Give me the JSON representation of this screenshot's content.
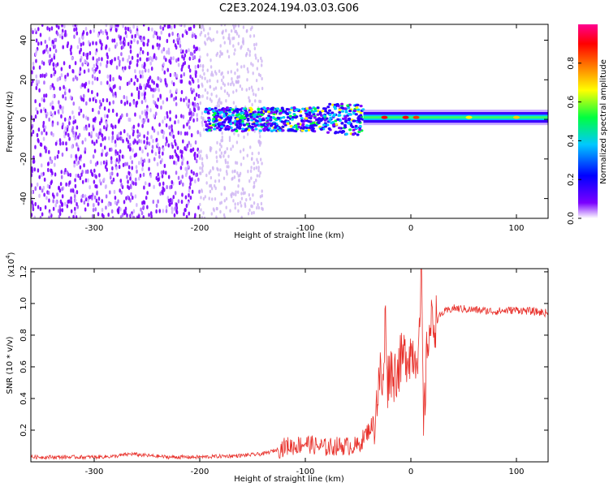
{
  "title": "C2E3.2024.194.03.03.G06",
  "chart_data": [
    {
      "type": "heatmap",
      "xlabel": "Height of straight line (km)",
      "ylabel": "Frequency (Hz)",
      "xlim": [
        -360,
        130
      ],
      "ylim": [
        -50,
        48
      ],
      "xticks": [
        -300,
        -200,
        -100,
        0,
        100
      ],
      "xtick_labels": [
        "-300",
        "-200",
        "-100",
        "0",
        "100"
      ],
      "yticks": [
        -40,
        -20,
        0,
        20,
        40
      ],
      "ytick_labels": [
        "-40",
        "-20",
        "0",
        "20",
        "40"
      ],
      "colorbar": {
        "label": "Normalized spectral amplitude",
        "range": [
          0,
          1
        ],
        "ticks": [
          0.0,
          0.2,
          0.4,
          0.6,
          0.8
        ],
        "tick_labels": [
          "0.0",
          "0.2",
          "0.4",
          "0.6",
          "0.8"
        ],
        "colormap": [
          "#ffffff",
          "#7b00ff",
          "#0000ff",
          "#00c8ff",
          "#00ff40",
          "#ffff00",
          "#ff8000",
          "#ff0000",
          "#ff0090"
        ]
      },
      "regions": [
        {
          "x_from": -360,
          "x_to": -200,
          "freq_spread": [
            -50,
            48
          ],
          "amplitude": 0.05,
          "color": "#7b00ff"
        },
        {
          "x_from": -200,
          "x_to": -140,
          "freq_spread": [
            -50,
            48
          ],
          "amplitude": 0.02,
          "color": "#c8a8f0"
        },
        {
          "x_from": -195,
          "x_to": -45,
          "freq_center": 0,
          "freq_halfwidth": 6,
          "amplitude": 0.3
        },
        {
          "x_from": -45,
          "x_to": 130,
          "freq_center": 1,
          "freq_halfwidth": 3,
          "amplitude": 0.45
        }
      ]
    },
    {
      "type": "line",
      "xlabel": "Height of straight line (km)",
      "ylabel": "SNR (10 * v/v)",
      "y_scale_label": "(x10",
      "y_scale_exp": "4",
      "y_scale_close": ")",
      "xlim": [
        -360,
        130
      ],
      "ylim": [
        0,
        1.22
      ],
      "xticks": [
        -300,
        -200,
        -100,
        0,
        100
      ],
      "xtick_labels": [
        "-300",
        "-200",
        "-100",
        "0",
        "100"
      ],
      "yticks": [
        0.2,
        0.4,
        0.6,
        0.8,
        1.0,
        1.2
      ],
      "ytick_labels": [
        "0.2",
        "0.4",
        "0.6",
        "0.8",
        "1.0",
        "1.2"
      ],
      "series": [
        {
          "color": "#e8302a",
          "x": [
            -360,
            -340,
            -320,
            -300,
            -280,
            -265,
            -250,
            -230,
            -200,
            -180,
            -160,
            -140,
            -125,
            -118,
            -110,
            -100,
            -90,
            -80,
            -70,
            -60,
            -50,
            -45,
            -40,
            -35,
            -32,
            -29,
            -26,
            -24,
            -22,
            -20,
            -16,
            -12,
            -8,
            -4,
            0,
            4,
            8,
            10,
            12,
            16,
            20,
            25,
            30,
            40,
            60,
            80,
            100,
            115,
            130
          ],
          "y": [
            0.03,
            0.03,
            0.03,
            0.03,
            0.035,
            0.05,
            0.04,
            0.03,
            0.03,
            0.035,
            0.04,
            0.05,
            0.08,
            0.1,
            0.1,
            0.12,
            0.1,
            0.09,
            0.1,
            0.1,
            0.1,
            0.15,
            0.2,
            0.25,
            0.4,
            0.55,
            0.45,
            0.97,
            0.5,
            0.6,
            0.55,
            0.6,
            0.65,
            0.68,
            0.7,
            0.68,
            0.75,
            1.2,
            0.2,
            0.8,
            0.87,
            0.9,
            0.94,
            0.97,
            0.96,
            0.95,
            0.96,
            0.95,
            0.94
          ]
        }
      ]
    }
  ]
}
